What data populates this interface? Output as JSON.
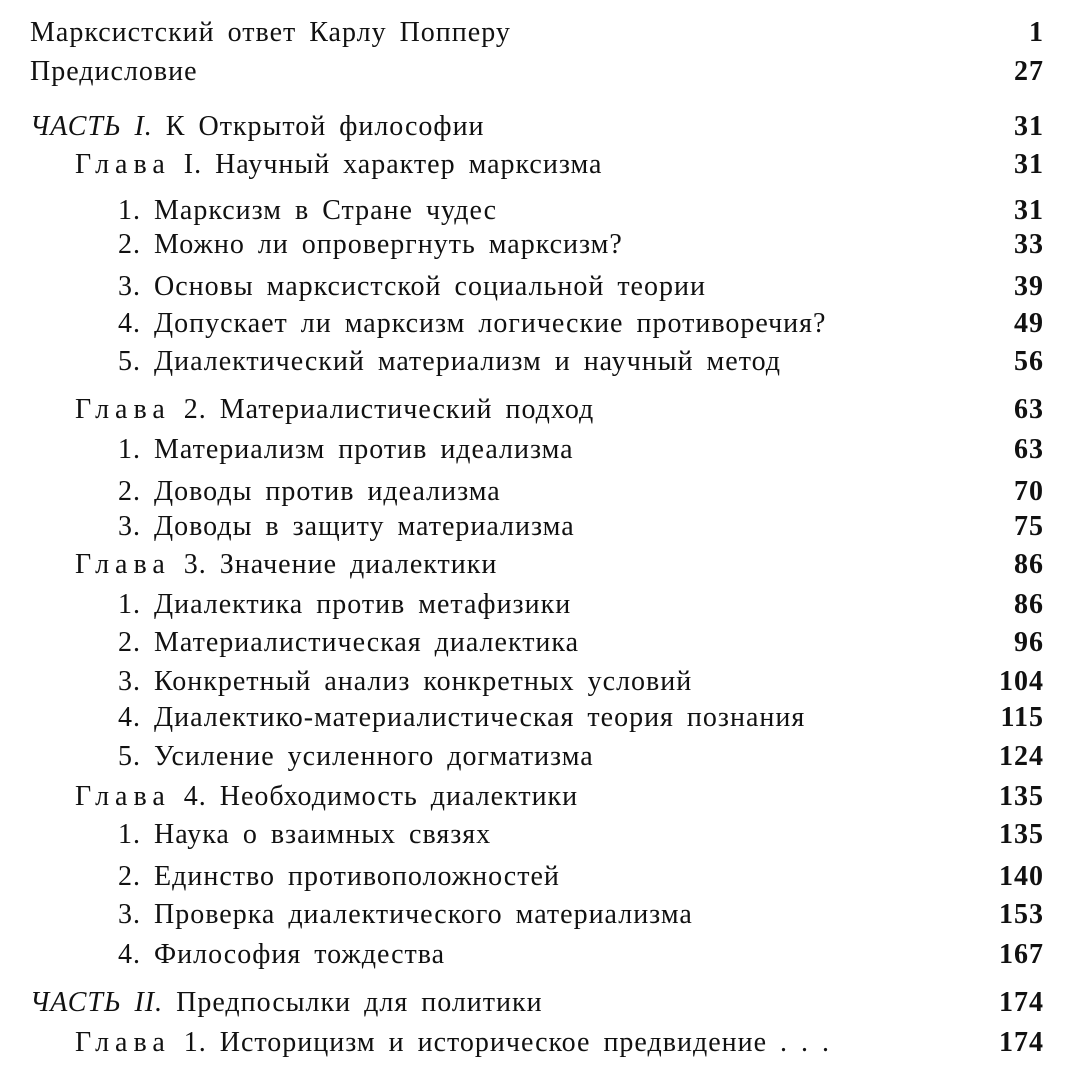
{
  "front": [
    {
      "title": "Марксистский ответ Карлу Попперу",
      "page": "1"
    },
    {
      "title": "Предисловие",
      "page": "27"
    }
  ],
  "part1": {
    "label": "ЧАСТЬ I.",
    "title": "К Открытой философии",
    "page": "31"
  },
  "ch1": {
    "prefix": "Глава",
    "title": "I. Научный характер марксизма",
    "page": "31",
    "sections": [
      {
        "title": "1. Марксизм в Стране чудес",
        "page": "31"
      },
      {
        "title": "2. Можно ли опровергнуть марксизм?",
        "page": "33"
      },
      {
        "title": "3. Основы марксистской социальной теории",
        "page": "39"
      },
      {
        "title": "4. Допускает ли марксизм логические противоречия?",
        "page": "49"
      },
      {
        "title": "5. Диалектический материализм и научный метод",
        "page": "56"
      }
    ]
  },
  "ch2": {
    "prefix": "Глава",
    "title": "2. Материалистический подход",
    "page": "63",
    "sections": [
      {
        "title": "1. Материализм против идеализма",
        "page": "63"
      },
      {
        "title": "2. Доводы против идеализма",
        "page": "70"
      },
      {
        "title": "3. Доводы в защиту материализма",
        "page": "75"
      }
    ]
  },
  "ch3": {
    "prefix": "Глава",
    "title": "3. Значение диалектики",
    "page": "86",
    "sections": [
      {
        "title": "1. Диалектика против метафизики",
        "page": "86"
      },
      {
        "title": "2. Материалистическая диалектика",
        "page": "96"
      },
      {
        "title": "3. Конкретный анализ конкретных условий",
        "page": "104"
      },
      {
        "title": "4. Диалектико-материалистическая теория познания",
        "page": "115"
      },
      {
        "title": "5. Усиление усиленного догматизма",
        "page": "124"
      }
    ]
  },
  "ch4": {
    "prefix": "Глава",
    "title": "4. Необходимость диалектики",
    "page": "135",
    "sections": [
      {
        "title": "1. Наука о взаимных связях",
        "page": "135"
      },
      {
        "title": "2. Единство противоположностей",
        "page": "140"
      },
      {
        "title": "3. Проверка диалектического материализма",
        "page": "153"
      },
      {
        "title": "4. Философия тождества",
        "page": "167"
      }
    ]
  },
  "part2": {
    "label": "ЧАСТЬ II.",
    "title": "Предпосылки для политики",
    "page": "174"
  },
  "ch5": {
    "prefix": "Глава",
    "title": "1. Историцизм и историческое предвидение . . .",
    "page": "174"
  }
}
